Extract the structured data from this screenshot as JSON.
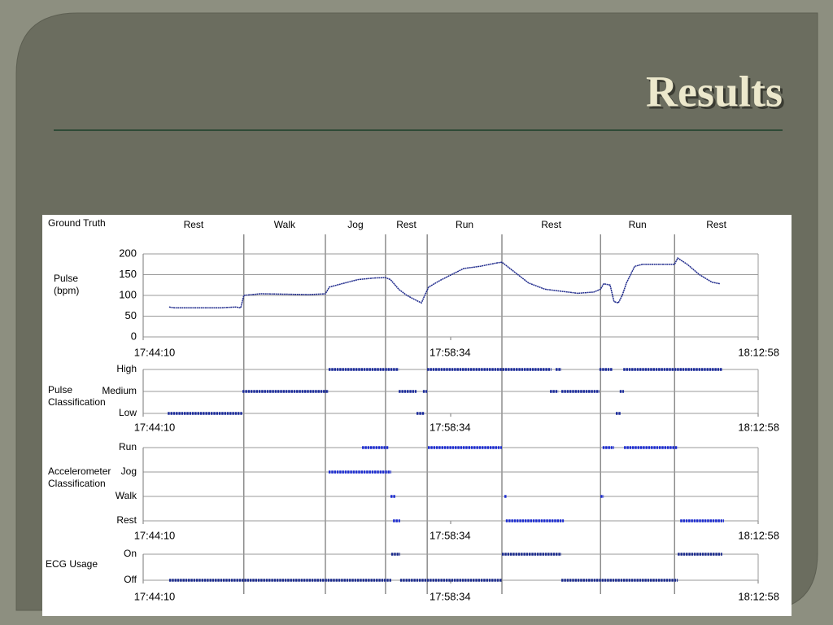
{
  "title": "Results",
  "ground_truth": {
    "label": "Ground Truth",
    "segments": [
      {
        "label": "Rest",
        "start": "17:44:10",
        "end": "17:48:53"
      },
      {
        "label": "Walk",
        "start": "17:48:53",
        "end": "17:52:42"
      },
      {
        "label": "Jog",
        "start": "17:52:42",
        "end": "17:55:31"
      },
      {
        "label": "Rest",
        "start": "17:55:31",
        "end": "17:57:28"
      },
      {
        "label": "Run",
        "start": "17:57:28",
        "end": "18:00:58"
      },
      {
        "label": "Rest",
        "start": "18:00:58",
        "end": "18:05:35"
      },
      {
        "label": "Run",
        "start": "18:05:35",
        "end": "18:09:03"
      },
      {
        "label": "Rest",
        "start": "18:09:03",
        "end": "18:12:58"
      }
    ]
  },
  "chart_data": [
    {
      "type": "line",
      "label": [
        "Pulse",
        "(bpm)"
      ],
      "color": "#1f2a8c",
      "x": [
        "17:45:23",
        "17:45:39",
        "17:46:13",
        "17:46:59",
        "17:47:45",
        "17:48:31",
        "17:48:44",
        "17:48:53",
        "17:49:39",
        "17:50:48",
        "17:51:56",
        "17:52:42",
        "17:52:53",
        "17:53:28",
        "17:54:13",
        "17:54:59",
        "17:55:31",
        "17:55:45",
        "17:56:08",
        "17:56:31",
        "17:56:53",
        "17:57:12",
        "17:57:21",
        "17:57:32",
        "17:58:02",
        "17:58:36",
        "17:59:11",
        "17:59:56",
        "18:00:42",
        "18:00:58",
        "18:01:28",
        "18:02:13",
        "18:02:59",
        "18:03:45",
        "18:04:31",
        "18:05:16",
        "18:05:35",
        "18:05:44",
        "18:06:02",
        "18:06:13",
        "18:06:25",
        "18:06:36",
        "18:06:48",
        "18:07:11",
        "18:07:33",
        "18:08:19",
        "18:08:53",
        "18:09:03",
        "18:09:12",
        "18:09:39",
        "18:10:13",
        "18:10:48",
        "18:11:11"
      ],
      "values": [
        72,
        70,
        70,
        70,
        70,
        72,
        70,
        100,
        104,
        103,
        102,
        104,
        120,
        128,
        138,
        142,
        143,
        138,
        115,
        100,
        90,
        82,
        100,
        120,
        135,
        150,
        165,
        170,
        178,
        180,
        160,
        130,
        115,
        110,
        105,
        108,
        115,
        128,
        125,
        85,
        82,
        100,
        130,
        170,
        175,
        175,
        175,
        175,
        190,
        175,
        150,
        132,
        128
      ],
      "xlim": [
        "17:44:10",
        "18:12:58"
      ],
      "xticks": [
        "17:44:10",
        "17:58:34",
        "18:12:58"
      ],
      "ylim": [
        0,
        200
      ],
      "yticks": [
        0,
        50,
        100,
        150,
        200
      ],
      "grid": true
    },
    {
      "type": "timeline",
      "label": [
        "Pulse",
        "Classification"
      ],
      "color": "#1a2a9a",
      "levels": [
        "High",
        "Medium",
        "Low"
      ],
      "segments": [
        {
          "level": "Low",
          "start": "17:45:19",
          "end": "17:48:49"
        },
        {
          "level": "Medium",
          "start": "17:48:49",
          "end": "17:52:51"
        },
        {
          "level": "High",
          "start": "17:52:51",
          "end": "17:56:08"
        },
        {
          "level": "Medium",
          "start": "17:56:08",
          "end": "17:56:58"
        },
        {
          "level": "Low",
          "start": "17:56:58",
          "end": "17:57:21"
        },
        {
          "level": "Medium",
          "start": "17:57:16",
          "end": "17:57:28"
        },
        {
          "level": "High",
          "start": "17:57:28",
          "end": "18:03:17"
        },
        {
          "level": "High",
          "start": "18:03:29",
          "end": "18:03:45"
        },
        {
          "level": "Medium",
          "start": "18:03:13",
          "end": "18:03:36"
        },
        {
          "level": "Medium",
          "start": "18:03:45",
          "end": "18:05:32"
        },
        {
          "level": "High",
          "start": "18:05:32",
          "end": "18:06:09"
        },
        {
          "level": "Low",
          "start": "18:06:18",
          "end": "18:06:32"
        },
        {
          "level": "Medium",
          "start": "18:06:29",
          "end": "18:06:41"
        },
        {
          "level": "High",
          "start": "18:06:39",
          "end": "18:11:17"
        }
      ],
      "xlim": [
        "17:44:10",
        "18:12:58"
      ],
      "xticks": [
        "17:44:10",
        "17:58:34",
        "18:12:58"
      ]
    },
    {
      "type": "timeline",
      "label": [
        "Accelerometer",
        "Classification"
      ],
      "color": "#1a2ad0",
      "levels": [
        "Run",
        "Jog",
        "Walk",
        "Rest"
      ],
      "segments": [
        {
          "level": "Run",
          "start": "17:54:25",
          "end": "17:55:40"
        },
        {
          "level": "Jog",
          "start": "17:52:51",
          "end": "17:55:47"
        },
        {
          "level": "Walk",
          "start": "17:55:45",
          "end": "17:55:59"
        },
        {
          "level": "Rest",
          "start": "17:55:52",
          "end": "17:56:12"
        },
        {
          "level": "Run",
          "start": "17:57:30",
          "end": "18:00:58"
        },
        {
          "level": "Walk",
          "start": "18:01:05",
          "end": "18:01:12"
        },
        {
          "level": "Rest",
          "start": "18:01:09",
          "end": "18:03:52"
        },
        {
          "level": "Walk",
          "start": "18:05:35",
          "end": "18:05:44"
        },
        {
          "level": "Run",
          "start": "18:05:41",
          "end": "18:06:13"
        },
        {
          "level": "Run",
          "start": "18:06:41",
          "end": "18:09:12"
        },
        {
          "level": "Rest",
          "start": "18:09:19",
          "end": "18:11:22"
        }
      ],
      "xlim": [
        "17:44:10",
        "18:12:58"
      ],
      "xticks": [
        "17:44:10",
        "17:58:34",
        "18:12:58"
      ]
    },
    {
      "type": "timeline",
      "label": [
        "ECG Usage"
      ],
      "color": "#1a2a8c",
      "levels": [
        "On",
        "Off"
      ],
      "segments": [
        {
          "level": "Off",
          "start": "17:45:23",
          "end": "17:55:47"
        },
        {
          "level": "On",
          "start": "17:55:47",
          "end": "17:56:12"
        },
        {
          "level": "Off",
          "start": "17:56:12",
          "end": "18:00:58"
        },
        {
          "level": "On",
          "start": "18:00:58",
          "end": "18:03:45"
        },
        {
          "level": "Off",
          "start": "18:03:45",
          "end": "18:09:12"
        },
        {
          "level": "On",
          "start": "18:09:12",
          "end": "18:11:17"
        }
      ],
      "xlim": [
        "17:44:10",
        "18:12:58"
      ],
      "xticks": [
        "17:44:10",
        "17:58:34",
        "18:12:58"
      ]
    }
  ]
}
